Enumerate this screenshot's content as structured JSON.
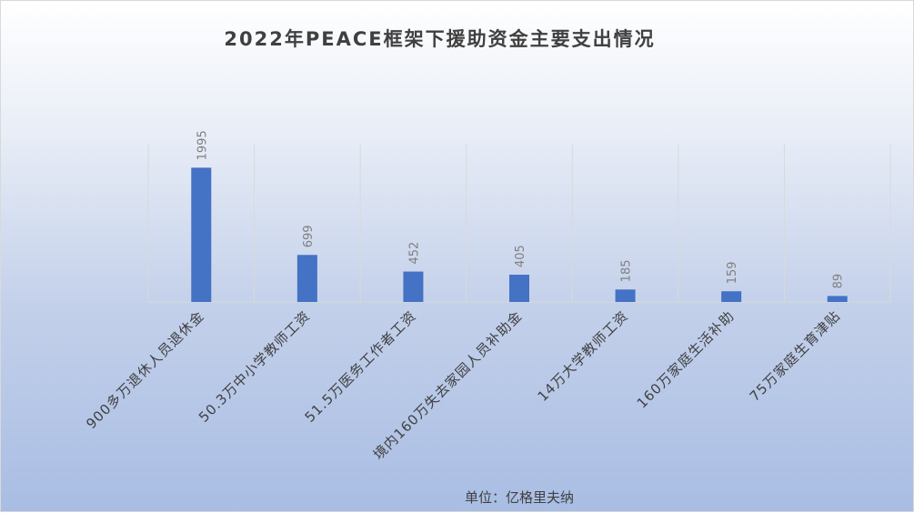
{
  "chart_data": {
    "type": "bar",
    "title": "2022年PEACE框架下援助资金主要支出情况",
    "categories": [
      "900多万退休人员退休金",
      "50.3万中小学教师工资",
      "51.5万医务工作者工资",
      "境内160万失去家园人员补助金",
      "14万大学教师工资",
      "160万家庭生活补助",
      "75万家庭生育津贴"
    ],
    "values": [
      1995,
      699,
      452,
      405,
      185,
      159,
      89
    ],
    "ylim": [
      0,
      2000
    ],
    "xlabel": "单位：亿格里夫纳",
    "ylabel": "",
    "grid": "vertical-category-separators",
    "bar_color": "#4472c4"
  }
}
